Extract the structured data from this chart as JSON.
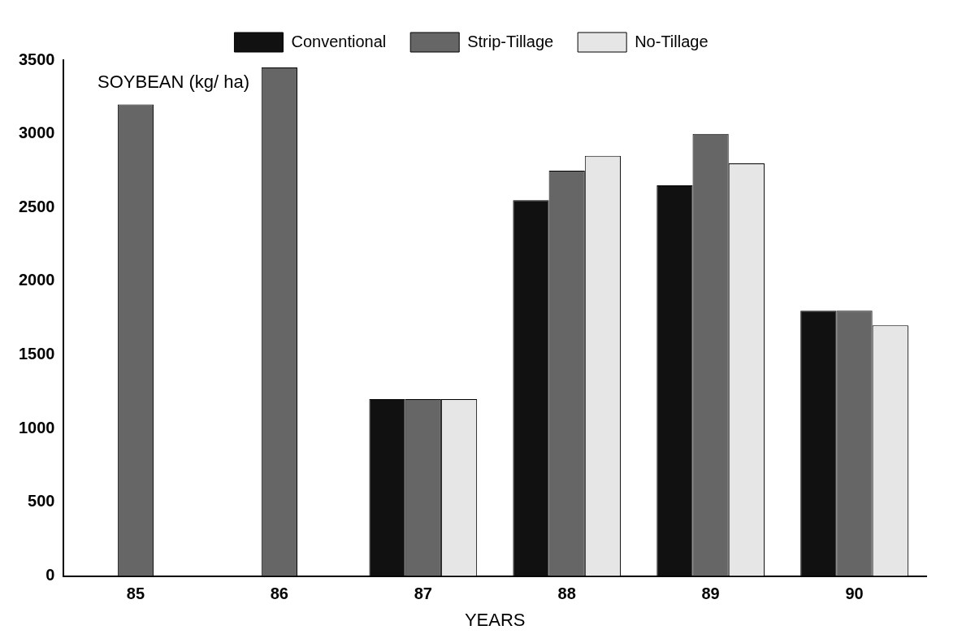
{
  "chart_data": {
    "type": "bar",
    "ylabel": "SOYBEAN (kg/ ha)",
    "xlabel": "YEARS",
    "categories": [
      "85",
      "86",
      "87",
      "88",
      "89",
      "90"
    ],
    "series": [
      {
        "name": "Conventional",
        "color": "#111111",
        "values": [
          null,
          null,
          1200,
          2550,
          2650,
          1800
        ]
      },
      {
        "name": "Strip-Tillage",
        "color": "#666666",
        "values": [
          3200,
          3450,
          1200,
          2750,
          3000,
          1800
        ]
      },
      {
        "name": "No-Tillage",
        "color": "#e6e6e6",
        "values": [
          null,
          null,
          1200,
          2850,
          2800,
          1700
        ]
      }
    ],
    "ylim": [
      0,
      3500
    ],
    "yticks": [
      0,
      500,
      1000,
      1500,
      2000,
      2500,
      3000,
      3500
    ],
    "grid": false,
    "legend": "top"
  }
}
